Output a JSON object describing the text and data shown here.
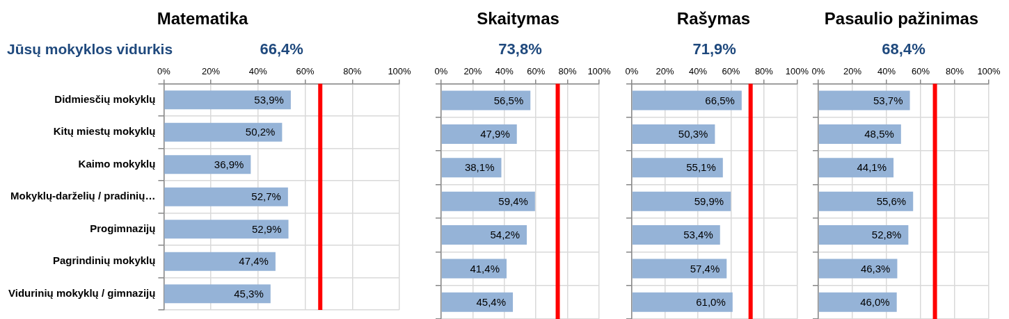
{
  "chart_data": [
    {
      "type": "bar",
      "orientation": "horizontal",
      "title": "Matematika",
      "annotations": [
        "Jūsų mokyklos vidurkis"
      ],
      "categories": [
        "Didmiesčių mokyklų",
        "Kitų miestų mokyklų",
        "Kaimo mokyklų",
        "Mokyklų-darželių / pradinių…",
        "Progimnazijų",
        "Pagrindinių mokyklų",
        "Vidurinių mokyklų / gimnazijų"
      ],
      "values": [
        53.9,
        50.2,
        36.9,
        52.7,
        52.9,
        47.4,
        45.3
      ],
      "value_labels": [
        "53,9%",
        "50,2%",
        "36,9%",
        "52,7%",
        "52,9%",
        "47,4%",
        "45,3%"
      ],
      "color": "#95b3d7",
      "xlim": [
        0,
        100
      ],
      "xticks": [
        {
          "value": 0,
          "label": "0%"
        },
        {
          "value": 20,
          "label": "20%"
        },
        {
          "value": 40,
          "label": "40%"
        },
        {
          "value": 60,
          "label": "60%"
        },
        {
          "value": 80,
          "label": "80%"
        },
        {
          "value": 100,
          "label": "100%"
        }
      ],
      "grid": true,
      "ref_lines": [
        {
          "axis": "x",
          "value": 66.4,
          "label": "66,4%",
          "color": "#ff0000"
        }
      ]
    },
    {
      "type": "bar",
      "orientation": "horizontal",
      "title": "Skaitymas",
      "tick_labels": "x",
      "categories": [
        null,
        null,
        null,
        null,
        null,
        null,
        null
      ],
      "values": [
        56.5,
        47.9,
        38.1,
        59.4,
        54.2,
        41.4,
        45.4
      ],
      "value_labels": [
        "56,5%",
        "47,9%",
        "38,1%",
        "59,4%",
        "54,2%",
        "41,4%",
        "45,4%"
      ],
      "color": "#95b3d7",
      "xlim": [
        0,
        100
      ],
      "xticks": [
        {
          "value": 0,
          "label": "0%"
        },
        {
          "value": 20,
          "label": "20%"
        },
        {
          "value": 40,
          "label": "40%"
        },
        {
          "value": 60,
          "label": "60%"
        },
        {
          "value": 80,
          "label": "80%"
        },
        {
          "value": 100,
          "label": "100%"
        }
      ],
      "grid": true,
      "ref_lines": [
        {
          "axis": "x",
          "value": 73.8,
          "label": "73,8%",
          "color": "#ff0000"
        }
      ]
    },
    {
      "type": "bar",
      "orientation": "horizontal",
      "title": "Rašymas",
      "tick_labels": "x",
      "categories": [
        null,
        null,
        null,
        null,
        null,
        null,
        null
      ],
      "values": [
        66.5,
        50.3,
        55.1,
        59.9,
        53.4,
        57.4,
        61.0
      ],
      "value_labels": [
        "66,5%",
        "50,3%",
        "55,1%",
        "59,9%",
        "53,4%",
        "57,4%",
        "61,0%"
      ],
      "color": "#95b3d7",
      "xlim": [
        0,
        100
      ],
      "xticks": [
        {
          "value": 0,
          "label": "0%"
        },
        {
          "value": 20,
          "label": "20%"
        },
        {
          "value": 40,
          "label": "40%"
        },
        {
          "value": 60,
          "label": "60%"
        },
        {
          "value": 80,
          "label": "80%"
        },
        {
          "value": 100,
          "label": "100%"
        }
      ],
      "grid": true,
      "ref_lines": [
        {
          "axis": "x",
          "value": 71.9,
          "label": "71,9%",
          "color": "#ff0000"
        }
      ]
    },
    {
      "type": "bar",
      "orientation": "horizontal",
      "title": "Pasaulio pažinimas",
      "tick_labels": "x",
      "categories": [
        null,
        null,
        null,
        null,
        null,
        null,
        null
      ],
      "values": [
        53.7,
        48.5,
        44.1,
        55.6,
        52.8,
        46.3,
        46.0
      ],
      "value_labels": [
        "53,7%",
        "48,5%",
        "44,1%",
        "55,6%",
        "52,8%",
        "46,3%",
        "46,0%"
      ],
      "color": "#95b3d7",
      "xlim": [
        0,
        100
      ],
      "xticks": [
        {
          "value": 0,
          "label": "0%"
        },
        {
          "value": 20,
          "label": "20%"
        },
        {
          "value": 40,
          "label": "40%"
        },
        {
          "value": 60,
          "label": "60%"
        },
        {
          "value": 80,
          "label": "80%"
        },
        {
          "value": 100,
          "label": "100%"
        }
      ],
      "grid": true,
      "ref_lines": [
        {
          "axis": "x",
          "value": 68.4,
          "label": "68,4%",
          "color": "#ff0000"
        }
      ]
    }
  ]
}
